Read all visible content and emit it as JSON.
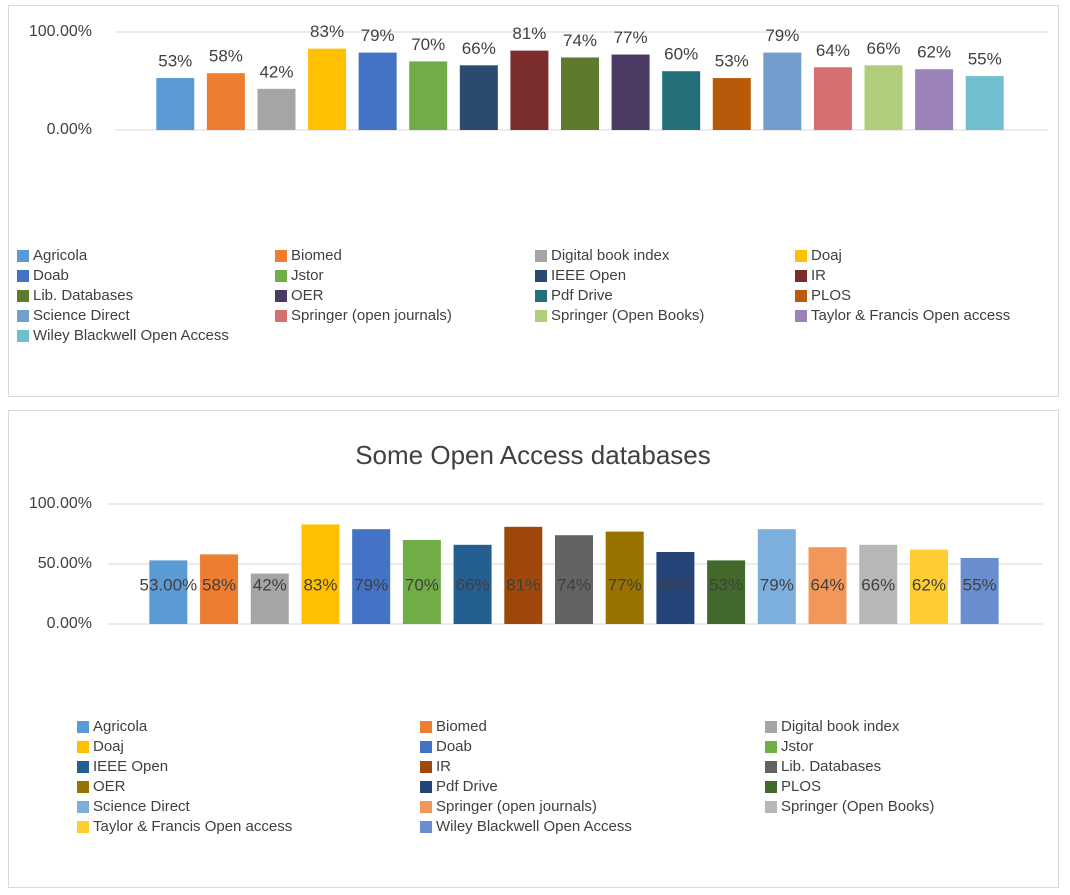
{
  "chart_data": [
    {
      "type": "bar",
      "ylim": [
        0,
        100
      ],
      "yticks": [
        {
          "value": 0,
          "label": "0.00%"
        },
        {
          "value": 100,
          "label": "100.00%"
        }
      ],
      "grid": true,
      "legend": "bottom",
      "series": [
        {
          "name": "Agricola",
          "color": "#5b9bd5",
          "values": [
            53
          ],
          "value_labels": [
            "53%"
          ]
        },
        {
          "name": "Biomed",
          "color": "#ed7d31",
          "values": [
            58
          ],
          "value_labels": [
            "58%"
          ]
        },
        {
          "name": "Digital book index",
          "color": "#a5a5a5",
          "values": [
            42
          ],
          "value_labels": [
            "42%"
          ]
        },
        {
          "name": "Doaj",
          "color": "#ffc000",
          "values": [
            83
          ],
          "value_labels": [
            "83%"
          ]
        },
        {
          "name": "Doab",
          "color": "#4472c4",
          "values": [
            79
          ],
          "value_labels": [
            "79%"
          ]
        },
        {
          "name": "Jstor",
          "color": "#70ad47",
          "values": [
            70
          ],
          "value_labels": [
            "70%"
          ]
        },
        {
          "name": "IEEE Open",
          "color": "#2a4a70",
          "values": [
            66
          ],
          "value_labels": [
            "66%"
          ]
        },
        {
          "name": "IR",
          "color": "#7b2c2c",
          "values": [
            81
          ],
          "value_labels": [
            "81%"
          ]
        },
        {
          "name": "Lib. Databases",
          "color": "#5e7a2e",
          "values": [
            74
          ],
          "value_labels": [
            "74%"
          ]
        },
        {
          "name": "OER",
          "color": "#4b3a63",
          "values": [
            77
          ],
          "value_labels": [
            "77%"
          ]
        },
        {
          "name": "Pdf Drive",
          "color": "#23707a",
          "values": [
            60
          ],
          "value_labels": [
            "60%"
          ]
        },
        {
          "name": "PLOS",
          "color": "#b85a0a",
          "values": [
            53
          ],
          "value_labels": [
            "53%"
          ]
        },
        {
          "name": "Science Direct",
          "color": "#729dcd",
          "values": [
            79
          ],
          "value_labels": [
            "79%"
          ]
        },
        {
          "name": "Springer (open journals)",
          "color": "#d47070",
          "values": [
            64
          ],
          "value_labels": [
            "64%"
          ]
        },
        {
          "name": "Springer (Open Books)",
          "color": "#afcd7b",
          "values": [
            66
          ],
          "value_labels": [
            "66%"
          ]
        },
        {
          "name": "Taylor & Francis Open access",
          "color": "#9b82b8",
          "values": [
            62
          ],
          "value_labels": [
            "62%"
          ]
        },
        {
          "name": "Wiley Blackwell Open Access",
          "color": "#6fbfd0",
          "values": [
            55
          ],
          "value_labels": [
            "55%"
          ]
        }
      ]
    },
    {
      "type": "bar",
      "title": "Some Open Access databases",
      "ylim": [
        0,
        100
      ],
      "yticks": [
        {
          "value": 0,
          "label": "0.00%"
        },
        {
          "value": 50,
          "label": "50.00%"
        },
        {
          "value": 100,
          "label": "100.00%"
        }
      ],
      "grid": true,
      "legend": "bottom",
      "series": [
        {
          "name": "Agricola",
          "color": "#5b9bd5",
          "values": [
            53
          ],
          "value_labels": [
            "53.00%"
          ]
        },
        {
          "name": "Biomed",
          "color": "#ed7d31",
          "values": [
            58
          ],
          "value_labels": [
            "58%"
          ]
        },
        {
          "name": "Digital book index",
          "color": "#a5a5a5",
          "values": [
            42
          ],
          "value_labels": [
            "42%"
          ]
        },
        {
          "name": "Doaj",
          "color": "#ffc000",
          "values": [
            83
          ],
          "value_labels": [
            "83%"
          ]
        },
        {
          "name": "Doab",
          "color": "#4472c4",
          "values": [
            79
          ],
          "value_labels": [
            "79%"
          ]
        },
        {
          "name": "Jstor",
          "color": "#70ad47",
          "values": [
            70
          ],
          "value_labels": [
            "70%"
          ]
        },
        {
          "name": "IEEE Open",
          "color": "#255e91",
          "values": [
            66
          ],
          "value_labels": [
            "66%"
          ]
        },
        {
          "name": "IR",
          "color": "#9e480e",
          "values": [
            81
          ],
          "value_labels": [
            "81%"
          ]
        },
        {
          "name": "Lib. Databases",
          "color": "#636363",
          "values": [
            74
          ],
          "value_labels": [
            "74%"
          ]
        },
        {
          "name": "OER",
          "color": "#997300",
          "values": [
            77
          ],
          "value_labels": [
            "77%"
          ]
        },
        {
          "name": "Pdf Drive",
          "color": "#264478",
          "values": [
            60
          ],
          "value_labels": [
            "60%"
          ]
        },
        {
          "name": "PLOS",
          "color": "#43682b",
          "values": [
            53
          ],
          "value_labels": [
            "53%"
          ]
        },
        {
          "name": "Science Direct",
          "color": "#7cafdd",
          "values": [
            79
          ],
          "value_labels": [
            "79%"
          ]
        },
        {
          "name": "Springer (open journals)",
          "color": "#f1975a",
          "values": [
            64
          ],
          "value_labels": [
            "64%"
          ]
        },
        {
          "name": "Springer (Open Books)",
          "color": "#b7b7b7",
          "values": [
            66
          ],
          "value_labels": [
            "66%"
          ]
        },
        {
          "name": "Taylor & Francis Open access",
          "color": "#ffcd33",
          "values": [
            62
          ],
          "value_labels": [
            "62%"
          ]
        },
        {
          "name": "Wiley Blackwell Open Access",
          "color": "#698ed0",
          "values": [
            55
          ],
          "value_labels": [
            "55%"
          ]
        }
      ]
    }
  ]
}
